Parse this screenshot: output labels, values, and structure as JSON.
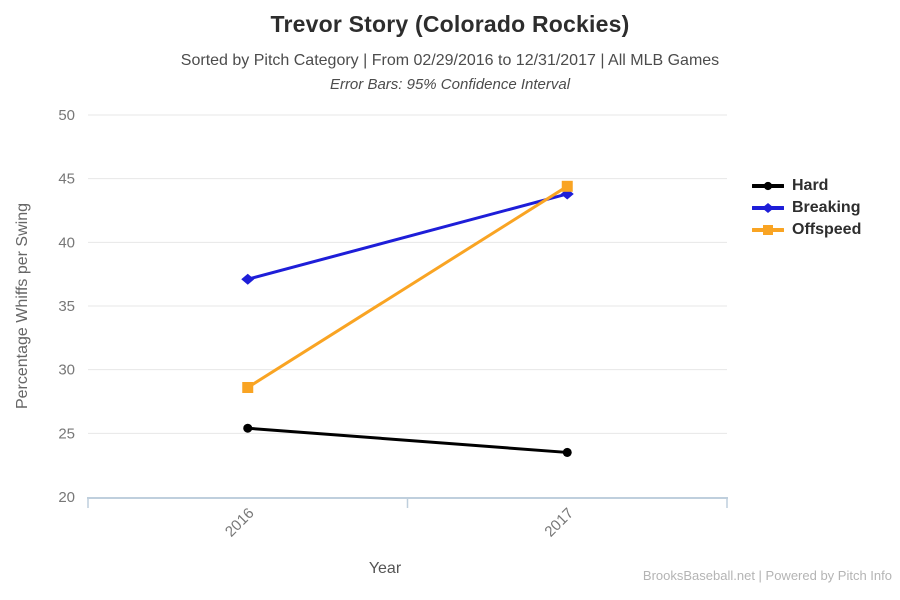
{
  "header": {
    "title": "Trevor Story (Colorado Rockies)",
    "subtitle": "Sorted by Pitch Category | From 02/29/2016 to 12/31/2017 | All MLB Games",
    "note": "Error Bars: 95% Confidence Interval"
  },
  "chart_data": {
    "type": "line",
    "categories": [
      "2016",
      "2017"
    ],
    "series": [
      {
        "name": "Hard",
        "marker": "circle",
        "color": "#000000",
        "values": [
          25.4,
          23.5
        ]
      },
      {
        "name": "Breaking",
        "marker": "diamond",
        "color": "#1e1ed8",
        "values": [
          37.1,
          43.8
        ]
      },
      {
        "name": "Offspeed",
        "marker": "square",
        "color": "#f9a423",
        "values": [
          28.6,
          44.4
        ]
      }
    ],
    "xlabel": "Year",
    "ylabel": "Percentage Whiffs per Swing",
    "ylim": [
      20,
      50
    ],
    "ytick_step": 5,
    "grid": true,
    "legend_position": "right",
    "colors": {
      "gridline": "#e7e7e7",
      "axis_border": "#bfcfdd",
      "tick_label": "#777777",
      "axis_title": "#666666"
    }
  },
  "footer": {
    "credit": "BrooksBaseball.net | Powered by Pitch Info"
  }
}
